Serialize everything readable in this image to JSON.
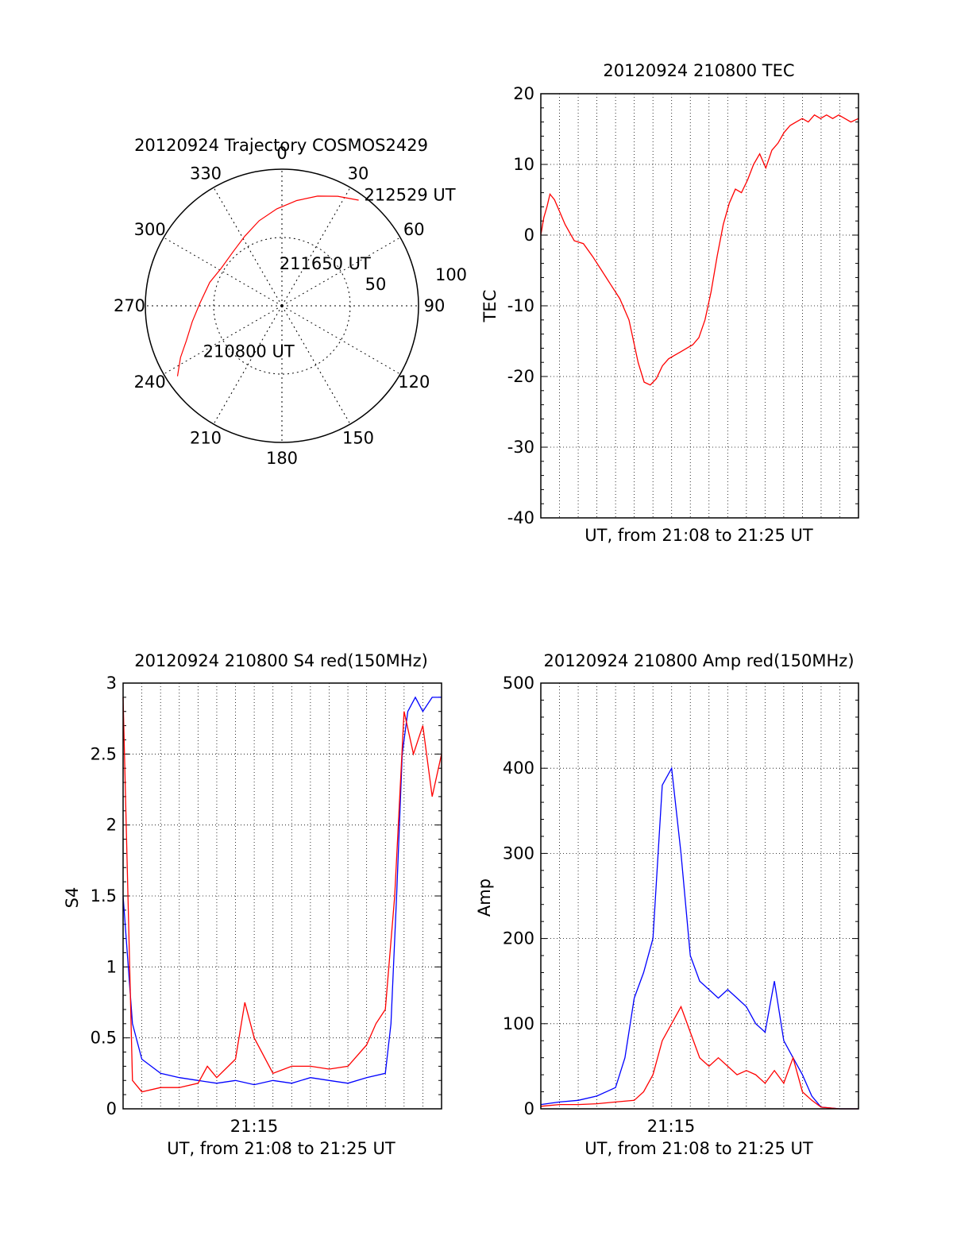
{
  "chart_data": [
    {
      "type": "polar",
      "title": "20120924 Trajectory COSMOS2429",
      "angle_labels": [
        "0",
        "30",
        "60",
        "90",
        "120",
        "150",
        "180",
        "210",
        "240",
        "270",
        "300",
        "330"
      ],
      "radial_labels": [
        "50",
        "100"
      ],
      "trajectory": {
        "color": "#ff0000",
        "points": [
          {
            "az": 236,
            "zen": 83
          },
          {
            "az": 243,
            "zen": 75
          },
          {
            "az": 250,
            "zen": 67
          },
          {
            "az": 260,
            "zen": 60
          },
          {
            "az": 272,
            "zen": 54
          },
          {
            "az": 288,
            "zen": 50
          },
          {
            "az": 302,
            "zen": 47
          },
          {
            "az": 318,
            "zen": 48
          },
          {
            "az": 332,
            "zen": 52
          },
          {
            "az": 345,
            "zen": 58
          },
          {
            "az": 357,
            "zen": 64
          },
          {
            "az": 8,
            "zen": 70
          },
          {
            "az": 18,
            "zen": 76
          },
          {
            "az": 27,
            "zen": 81
          },
          {
            "az": 36,
            "zen": 86
          }
        ]
      },
      "annotations": [
        {
          "text": "212529 UT",
          "az": 38,
          "zen": 88
        },
        {
          "text": "211650 UT",
          "az": 356,
          "zen": 24
        },
        {
          "text": "210800 UT",
          "az": 237,
          "zen": 62
        }
      ]
    },
    {
      "type": "line",
      "title": "20120924 210800 TEC",
      "xlabel": "UT, from 21:08 to 21:25 UT",
      "ylabel": "TEC",
      "xlim": [
        0,
        1045
      ],
      "ylim": [
        -40,
        20
      ],
      "yticks": [
        "-40",
        "-30",
        "-20",
        "-10",
        "0",
        "10",
        "20"
      ],
      "grid": true,
      "series": [
        {
          "color": "#ff0000",
          "x": [
            0,
            10,
            20,
            30,
            45,
            60,
            80,
            110,
            140,
            170,
            200,
            230,
            260,
            290,
            320,
            340,
            360,
            380,
            400,
            420,
            440,
            460,
            480,
            500,
            520,
            540,
            560,
            580,
            600,
            620,
            640,
            660,
            680,
            700,
            720,
            740,
            760,
            780,
            800,
            820,
            840,
            860,
            880,
            900,
            920,
            940,
            960,
            980,
            1000,
            1020,
            1045
          ],
          "y": [
            0,
            2.5,
            4,
            5.8,
            5,
            3.5,
            1.5,
            -0.8,
            -1.2,
            -3,
            -5,
            -7,
            -9,
            -12,
            -18,
            -20.8,
            -21.2,
            -20.3,
            -18.5,
            -17.5,
            -17,
            -16.5,
            -16,
            -15.5,
            -14.5,
            -12,
            -8,
            -3,
            1.5,
            4.5,
            6.5,
            6,
            7.8,
            10,
            11.5,
            9.5,
            12,
            13,
            14.5,
            15.5,
            16,
            16.5,
            16,
            17,
            16.5,
            17,
            16.5,
            17,
            16.5,
            16,
            16.5
          ]
        }
      ]
    },
    {
      "type": "line",
      "title": "20120924 210800 S4 red(150MHz)",
      "xlabel": "UT, from 21:08 to 21:25 UT",
      "ylabel": "S4",
      "xtick_labels": [
        "21:15"
      ],
      "ylim": [
        0,
        3
      ],
      "yticks": [
        "0",
        "0.5",
        "1",
        "1.5",
        "2",
        "2.5",
        "3"
      ],
      "grid": true,
      "series": [
        {
          "color": "#0000ff",
          "x": [
            0,
            0.5,
            1,
            1.5,
            2,
            3,
            4,
            5,
            6,
            7,
            8,
            9,
            10,
            11,
            12,
            13,
            14,
            14.3,
            14.6,
            14.9,
            15.2,
            15.6,
            16,
            16.5,
            17
          ],
          "y": [
            1.5,
            0.6,
            0.35,
            0.3,
            0.25,
            0.22,
            0.2,
            0.18,
            0.2,
            0.17,
            0.2,
            0.18,
            0.22,
            0.2,
            0.18,
            0.22,
            0.25,
            0.6,
            1.5,
            2.5,
            2.8,
            2.9,
            2.8,
            2.9,
            2.9
          ]
        },
        {
          "color": "#ff0000",
          "x": [
            0,
            0.5,
            1,
            2,
            3,
            4,
            4.5,
            5,
            6,
            6.5,
            7,
            8,
            9,
            10,
            11,
            12,
            13,
            13.5,
            14,
            14.5,
            15,
            15.5,
            16,
            16.5,
            17
          ],
          "y": [
            2.9,
            0.2,
            0.12,
            0.15,
            0.15,
            0.18,
            0.3,
            0.22,
            0.35,
            0.75,
            0.5,
            0.25,
            0.3,
            0.3,
            0.28,
            0.3,
            0.45,
            0.6,
            0.7,
            1.5,
            2.8,
            2.5,
            2.7,
            2.2,
            2.5
          ]
        }
      ]
    },
    {
      "type": "line",
      "title": "20120924 210800 Amp red(150MHz)",
      "xlabel": "UT, from 21:08 to 21:25 UT",
      "ylabel": "Amp",
      "xtick_labels": [
        "21:15"
      ],
      "ylim": [
        0,
        500
      ],
      "yticks": [
        "0",
        "100",
        "200",
        "300",
        "400",
        "500"
      ],
      "grid": true,
      "series": [
        {
          "color": "#0000ff",
          "x": [
            0,
            1,
            2,
            3,
            4,
            4.5,
            5,
            5.5,
            6,
            6.5,
            7,
            7.5,
            8,
            8.5,
            9,
            9.5,
            10,
            10.5,
            11,
            11.5,
            12,
            12.5,
            13,
            13.5,
            14,
            14.5,
            15,
            16,
            17
          ],
          "y": [
            5,
            8,
            10,
            15,
            25,
            60,
            130,
            160,
            200,
            380,
            400,
            300,
            180,
            150,
            140,
            130,
            140,
            130,
            120,
            100,
            90,
            150,
            80,
            60,
            40,
            15,
            2,
            0,
            0
          ]
        },
        {
          "color": "#ff0000",
          "x": [
            0,
            1,
            2,
            3,
            4,
            5,
            5.5,
            6,
            6.5,
            7,
            7.5,
            8,
            8.5,
            9,
            9.5,
            10,
            10.5,
            11,
            11.5,
            12,
            12.5,
            13,
            13.5,
            14,
            14.5,
            15,
            16,
            17
          ],
          "y": [
            3,
            5,
            5,
            6,
            8,
            10,
            20,
            40,
            80,
            100,
            120,
            90,
            60,
            50,
            60,
            50,
            40,
            45,
            40,
            30,
            45,
            30,
            60,
            20,
            10,
            2,
            0,
            0
          ]
        }
      ]
    }
  ]
}
